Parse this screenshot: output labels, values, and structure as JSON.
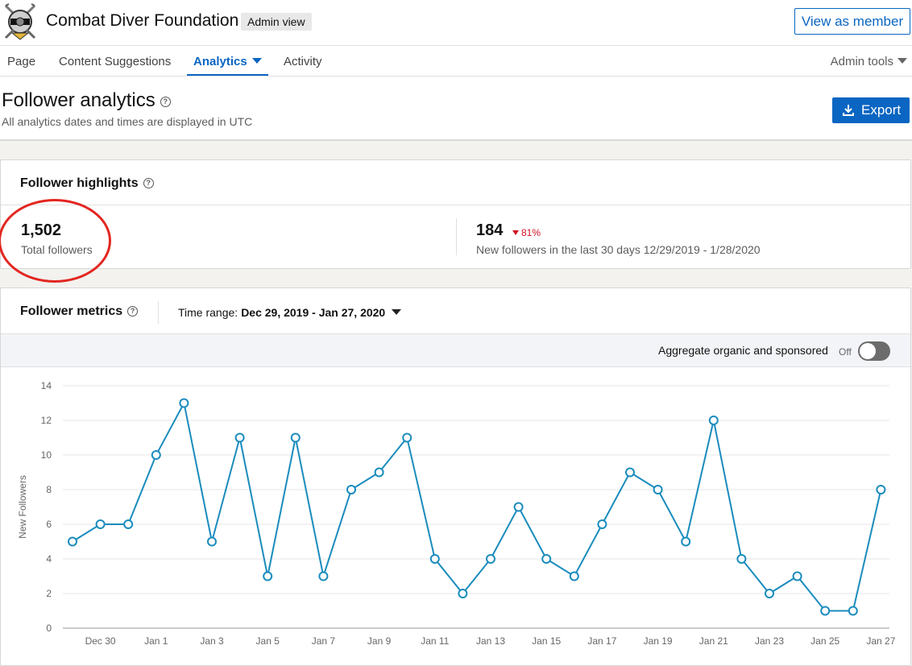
{
  "header": {
    "org_name": "Combat Diver Foundation",
    "admin_badge": "Admin view",
    "view_as_member": "View as member",
    "logo_icon": "diver-helmet-logo"
  },
  "nav": {
    "tabs": [
      {
        "label": "Page",
        "active": false
      },
      {
        "label": "Content Suggestions",
        "active": false
      },
      {
        "label": "Analytics",
        "active": true
      },
      {
        "label": "Activity",
        "active": false
      }
    ],
    "admin_tools": "Admin tools"
  },
  "page": {
    "title": "Follower analytics",
    "subtitle": "All analytics dates and times are displayed in UTC",
    "export_label": "Export"
  },
  "highlights": {
    "title": "Follower highlights",
    "total_followers": {
      "value": "1,502",
      "label": "Total followers"
    },
    "new_followers": {
      "value": "184",
      "delta": "81%",
      "delta_direction": "down",
      "label": "New followers in the last 30 days 12/29/2019 - 1/28/2020"
    }
  },
  "metrics": {
    "title": "Follower metrics",
    "time_range_label": "Time range:",
    "time_range_value": "Dec 29, 2019 - Jan 27, 2020",
    "aggregate_label": "Aggregate organic and sponsored",
    "aggregate_state": "Off"
  },
  "colors": {
    "accent": "#0a66c2",
    "line": "#1a8cbd",
    "negative": "#d11124",
    "annotation": "#e32620"
  },
  "chart_data": {
    "type": "line",
    "ylabel": "New Followers",
    "ylim": [
      0,
      14
    ],
    "yticks": [
      0,
      2,
      4,
      6,
      8,
      10,
      12,
      14
    ],
    "grid": true,
    "x": [
      "Dec 29",
      "Dec 30",
      "Dec 31",
      "Jan 1",
      "Jan 2",
      "Jan 3",
      "Jan 4",
      "Jan 5",
      "Jan 6",
      "Jan 7",
      "Jan 8",
      "Jan 9",
      "Jan 10",
      "Jan 11",
      "Jan 12",
      "Jan 13",
      "Jan 14",
      "Jan 15",
      "Jan 16",
      "Jan 17",
      "Jan 18",
      "Jan 19",
      "Jan 20",
      "Jan 21",
      "Jan 22",
      "Jan 23",
      "Jan 24",
      "Jan 25",
      "Jan 26",
      "Jan 27"
    ],
    "xtick_labels": [
      "Dec 30",
      "Jan 1",
      "Jan 3",
      "Jan 5",
      "Jan 7",
      "Jan 9",
      "Jan 11",
      "Jan 13",
      "Jan 15",
      "Jan 17",
      "Jan 19",
      "Jan 21",
      "Jan 23",
      "Jan 25",
      "Jan 27"
    ],
    "series": [
      {
        "values": [
          5,
          6,
          6,
          10,
          13,
          5,
          11,
          3,
          11,
          3,
          8,
          9,
          11,
          4,
          2,
          4,
          7,
          4,
          3,
          6,
          9,
          8,
          5,
          12,
          4,
          2,
          3,
          1,
          1,
          8
        ]
      }
    ]
  }
}
